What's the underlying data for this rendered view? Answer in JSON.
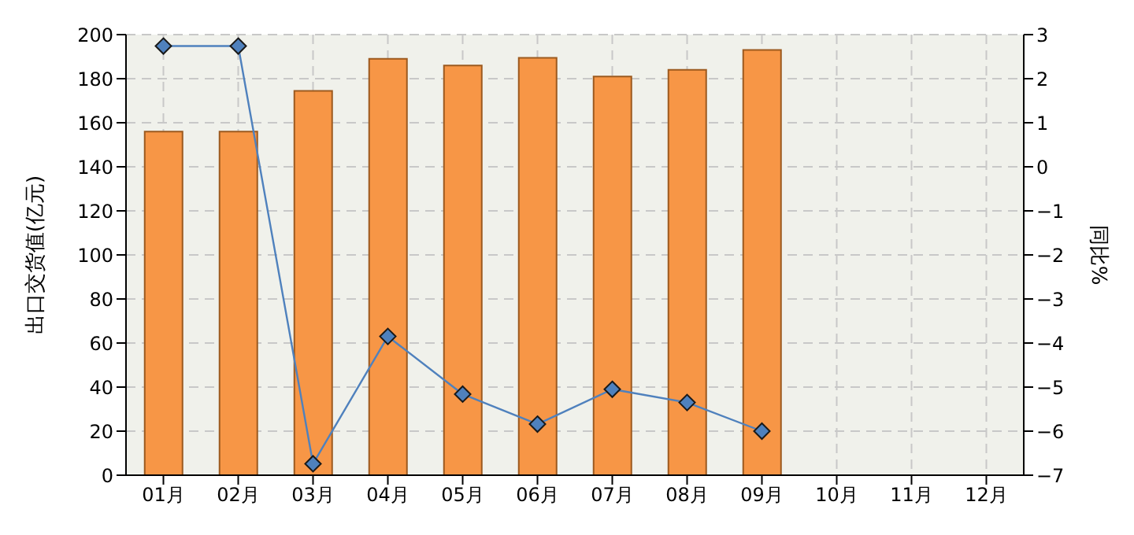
{
  "chart_data": {
    "type": "bar",
    "categories": [
      "01月",
      "02月",
      "03月",
      "04月",
      "05月",
      "06月",
      "07月",
      "08月",
      "09月",
      "10月",
      "11月",
      "12月"
    ],
    "series": [
      {
        "color": "#f79646",
        "values": [
          156,
          156,
          174.5,
          189,
          186,
          189.5,
          181,
          184,
          193,
          null,
          null,
          null
        ]
      },
      {
        "type": "line",
        "axis": "y2",
        "color": "#4f81bd",
        "values": [
          2.74,
          2.74,
          -6.74,
          -3.85,
          -5.16,
          -5.84,
          -5.05,
          -5.35,
          -6.0,
          null,
          null,
          null
        ]
      }
    ],
    "ylabel": "出口交货值(亿元)",
    "y2label": "同比%",
    "ylim": [
      0,
      200
    ],
    "yticks": [
      0,
      20,
      40,
      60,
      80,
      100,
      120,
      140,
      160,
      180,
      200
    ],
    "y2lim": [
      -7,
      3
    ],
    "y2ticks": [
      -7,
      -6,
      -5,
      -4,
      -3,
      -2,
      -1,
      0,
      1,
      2,
      3
    ],
    "grid": true,
    "marker": "diamond",
    "line_style": "solid"
  }
}
